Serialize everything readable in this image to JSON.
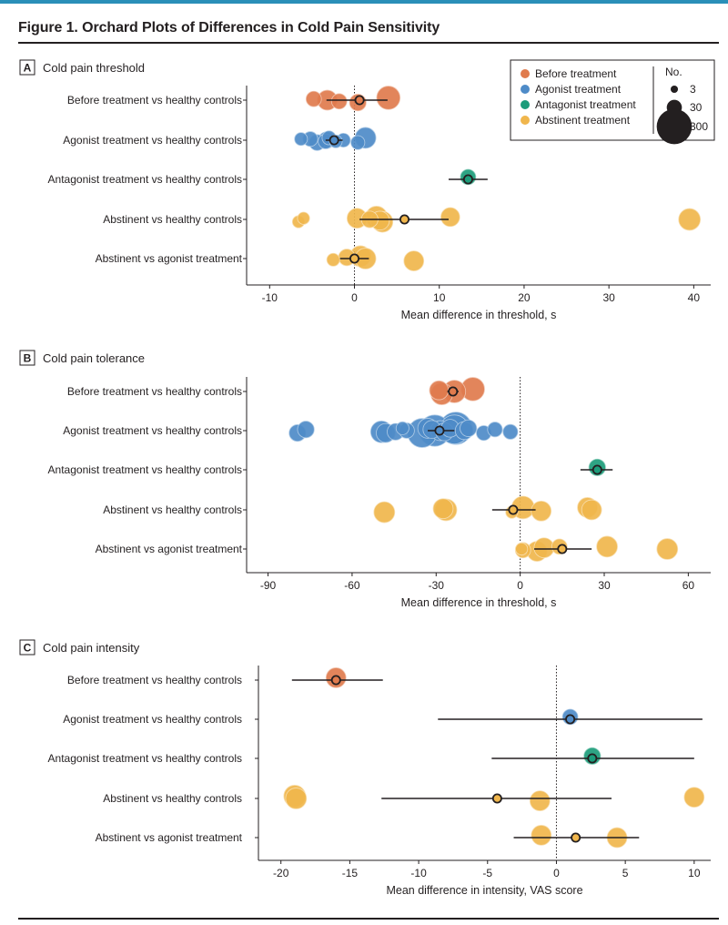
{
  "figure": {
    "title": "Figure 1. Orchard Plots of Differences in Cold Pain Sensitivity"
  },
  "colors": {
    "before": "#e07b4d",
    "agonist": "#4e8bc8",
    "antagonist": "#1c9c7a",
    "abstinent": "#f0b64c"
  },
  "legend": {
    "entries": [
      {
        "key": "before",
        "label": "Before treatment"
      },
      {
        "key": "agonist",
        "label": "Agonist treatment"
      },
      {
        "key": "antagonist",
        "label": "Antagonist treatment"
      },
      {
        "key": "abstinent",
        "label": "Abstinent treatment"
      }
    ],
    "size_title": "No.",
    "sizes": [
      {
        "n": 3,
        "label": "3"
      },
      {
        "n": 30,
        "label": "30"
      },
      {
        "n": 300,
        "label": "300"
      }
    ]
  },
  "chart_data": [
    {
      "panel": "A",
      "type": "scatter",
      "title": "Cold pain threshold",
      "xlabel": "Mean difference in threshold, s",
      "xlim": [
        -12.5,
        42
      ],
      "xticks": [
        -10,
        0,
        10,
        20,
        30,
        40
      ],
      "xtick_labels": [
        "-10",
        "0",
        "10",
        "20",
        "30",
        "40"
      ],
      "reference_line": 0,
      "rows": [
        {
          "label": "Before treatment vs healthy controls",
          "group": "before",
          "estimate": 0.6,
          "ci": [
            -3.3,
            3.9
          ],
          "points": [
            {
              "x": -4.8,
              "n": 20
            },
            {
              "x": -3.2,
              "n": 40
            },
            {
              "x": -1.8,
              "n": 20
            },
            {
              "x": 0.4,
              "n": 25
            },
            {
              "x": 4.0,
              "n": 60
            }
          ]
        },
        {
          "label": "Agonist treatment vs healthy controls",
          "group": "agonist",
          "estimate": -2.4,
          "ci": [
            -3.4,
            -1.4
          ],
          "points": [
            {
              "x": -6.3,
              "n": 12
            },
            {
              "x": -5.2,
              "n": 18
            },
            {
              "x": -4.4,
              "n": 22
            },
            {
              "x": -3.3,
              "n": 25
            },
            {
              "x": -3.4,
              "n": 18
            },
            {
              "x": -3.0,
              "n": 15
            },
            {
              "x": -2.2,
              "n": 12
            },
            {
              "x": -1.3,
              "n": 15
            },
            {
              "x": 0.4,
              "n": 15
            },
            {
              "x": 1.3,
              "n": 45
            }
          ]
        },
        {
          "label": "Antagonist treatment vs healthy controls",
          "group": "antagonist",
          "estimate": 13.4,
          "ci": [
            11.1,
            15.7
          ],
          "points": [
            {
              "x": 13.4,
              "n": 20
            }
          ]
        },
        {
          "label": "Abstinent vs healthy controls",
          "group": "abstinent",
          "estimate": 5.9,
          "ci": [
            0.6,
            11.1
          ],
          "points": [
            {
              "x": -6.6,
              "n": 10
            },
            {
              "x": -6.0,
              "n": 10
            },
            {
              "x": 0.3,
              "n": 40
            },
            {
              "x": 1.8,
              "n": 25
            },
            {
              "x": 2.6,
              "n": 50
            },
            {
              "x": 3.0,
              "n": 35
            },
            {
              "x": 3.3,
              "n": 45
            },
            {
              "x": 11.3,
              "n": 35
            },
            {
              "x": 39.5,
              "n": 50
            }
          ]
        },
        {
          "label": "Abstinent vs agonist treatment",
          "group": "abstinent",
          "estimate": 0.0,
          "ci": [
            -1.7,
            1.7
          ],
          "points": [
            {
              "x": -2.5,
              "n": 12
            },
            {
              "x": -0.9,
              "n": 25
            },
            {
              "x": 0.7,
              "n": 45
            },
            {
              "x": 1.3,
              "n": 45
            },
            {
              "x": 7.0,
              "n": 40
            }
          ]
        }
      ]
    },
    {
      "panel": "B",
      "type": "scatter",
      "title": "Cold pain tolerance",
      "xlabel": "Mean difference in threshold, s",
      "xlim": [
        -97,
        68
      ],
      "xticks": [
        -90,
        -60,
        -30,
        0,
        30,
        60
      ],
      "xtick_labels": [
        "-90",
        "-60",
        "-30",
        "0",
        "30",
        "60"
      ],
      "reference_line": 0,
      "rows": [
        {
          "label": "Before treatment vs healthy controls",
          "group": "before",
          "estimate": -24.0,
          "ci": [
            -26.0,
            -22.0
          ],
          "points": [
            {
              "x": -28.0,
              "n": 50
            },
            {
              "x": -29.0,
              "n": 35
            },
            {
              "x": -23.5,
              "n": 55
            },
            {
              "x": -16.9,
              "n": 60
            }
          ]
        },
        {
          "label": "Agonist treatment vs healthy controls",
          "group": "agonist",
          "estimate": -28.8,
          "ci": [
            -33.0,
            -23.5
          ],
          "points": [
            {
              "x": -79.5,
              "n": 25
            },
            {
              "x": -76.5,
              "n": 25
            },
            {
              "x": -49.5,
              "n": 50
            },
            {
              "x": -48.0,
              "n": 35
            },
            {
              "x": -44.5,
              "n": 25
            },
            {
              "x": -42.0,
              "n": 12
            },
            {
              "x": -40.5,
              "n": 20
            },
            {
              "x": -35.0,
              "n": 100
            },
            {
              "x": -33.0,
              "n": 40
            },
            {
              "x": -31.5,
              "n": 30
            },
            {
              "x": -30.5,
              "n": 120
            },
            {
              "x": -28.5,
              "n": 40
            },
            {
              "x": -27.0,
              "n": 30
            },
            {
              "x": -25.0,
              "n": 30
            },
            {
              "x": -23.5,
              "n": 100
            },
            {
              "x": -23.0,
              "n": 130
            },
            {
              "x": -20.0,
              "n": 30
            },
            {
              "x": -18.5,
              "n": 25
            },
            {
              "x": -13.0,
              "n": 18
            },
            {
              "x": -9.0,
              "n": 18
            },
            {
              "x": -3.5,
              "n": 18
            }
          ]
        },
        {
          "label": "Antagonist treatment vs healthy controls",
          "group": "antagonist",
          "estimate": 27.5,
          "ci": [
            21.5,
            33.0
          ],
          "points": [
            {
              "x": 27.5,
              "n": 25
            }
          ]
        },
        {
          "label": "Abstinent vs healthy controls",
          "group": "abstinent",
          "estimate": -2.5,
          "ci": [
            -10.0,
            5.5
          ],
          "points": [
            {
              "x": -48.5,
              "n": 45
            },
            {
              "x": -26.5,
              "n": 50
            },
            {
              "x": -27.5,
              "n": 40
            },
            {
              "x": -3.0,
              "n": 10
            },
            {
              "x": 1.0,
              "n": 55
            },
            {
              "x": 7.5,
              "n": 40
            },
            {
              "x": 24.0,
              "n": 40
            },
            {
              "x": 25.5,
              "n": 40
            }
          ]
        },
        {
          "label": "Abstinent vs agonist treatment",
          "group": "abstinent",
          "estimate": 15.0,
          "ci": [
            5.0,
            25.5
          ],
          "points": [
            {
              "x": 0.5,
              "n": 10
            },
            {
              "x": 1.0,
              "n": 20
            },
            {
              "x": 6.0,
              "n": 40
            },
            {
              "x": 8.5,
              "n": 40
            },
            {
              "x": 14.0,
              "n": 20
            },
            {
              "x": 31.0,
              "n": 45
            },
            {
              "x": 52.5,
              "n": 45
            }
          ]
        }
      ]
    },
    {
      "panel": "C",
      "type": "scatter",
      "title": "Cold pain intensity",
      "xlabel": "Mean difference in intensity, VAS score",
      "xlim": [
        -21.5,
        11.2
      ],
      "xticks": [
        -20,
        -15,
        -10,
        -5,
        0,
        5,
        10
      ],
      "xtick_labels": [
        "-20",
        "-15",
        "-10",
        "-5",
        "0",
        "5",
        "10"
      ],
      "reference_line": 0,
      "rows": [
        {
          "label": "Before treatment vs healthy controls",
          "group": "before",
          "estimate": -16.0,
          "ci": [
            -19.2,
            -12.6
          ],
          "points": [
            {
              "x": -16.0,
              "n": 40
            }
          ]
        },
        {
          "label": "Agonist treatment vs healthy controls",
          "group": "agonist",
          "estimate": 1.0,
          "ci": [
            -8.6,
            10.6
          ],
          "points": [
            {
              "x": 1.0,
              "n": 20
            }
          ]
        },
        {
          "label": "Antagonist treatment vs healthy controls",
          "group": "antagonist",
          "estimate": 2.6,
          "ci": [
            -4.7,
            10.0
          ],
          "points": [
            {
              "x": 2.6,
              "n": 25
            }
          ]
        },
        {
          "label": "Abstinent vs healthy controls",
          "group": "abstinent",
          "estimate": -4.3,
          "ci": [
            -12.7,
            4.0
          ],
          "points": [
            {
              "x": -18.9,
              "n": 45
            },
            {
              "x": -19.0,
              "n": 50
            },
            {
              "x": -1.2,
              "n": 40
            },
            {
              "x": 10.0,
              "n": 40
            }
          ]
        },
        {
          "label": "Abstinent vs agonist treatment",
          "group": "abstinent",
          "estimate": 1.4,
          "ci": [
            -3.1,
            6.0
          ],
          "points": [
            {
              "x": -1.1,
              "n": 40
            },
            {
              "x": 4.4,
              "n": 40
            }
          ]
        }
      ]
    }
  ]
}
